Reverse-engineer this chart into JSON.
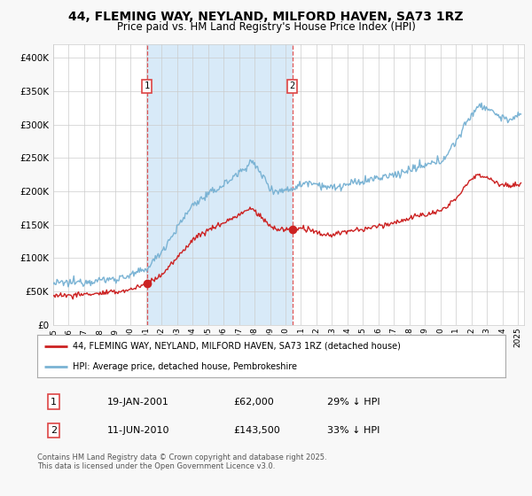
{
  "title1": "44, FLEMING WAY, NEYLAND, MILFORD HAVEN, SA73 1RZ",
  "title2": "Price paid vs. HM Land Registry's House Price Index (HPI)",
  "bg_color": "#f8f8f8",
  "plot_bg": "#ffffff",
  "ylim": [
    0,
    420000
  ],
  "yticks": [
    0,
    50000,
    100000,
    150000,
    200000,
    250000,
    300000,
    350000,
    400000
  ],
  "purchase1_date": 2001.05,
  "purchase1_price": 62000,
  "purchase2_date": 2010.44,
  "purchase2_price": 143500,
  "hpi_color": "#7ab3d4",
  "price_color": "#cc2222",
  "legend_label1": "44, FLEMING WAY, NEYLAND, MILFORD HAVEN, SA73 1RZ (detached house)",
  "legend_label2": "HPI: Average price, detached house, Pembrokeshire",
  "table_row1": [
    "1",
    "19-JAN-2001",
    "£62,000",
    "29% ↓ HPI"
  ],
  "table_row2": [
    "2",
    "11-JUN-2010",
    "£143,500",
    "33% ↓ HPI"
  ],
  "footer": "Contains HM Land Registry data © Crown copyright and database right 2025.\nThis data is licensed under the Open Government Licence v3.0.",
  "title_fontsize": 10,
  "subtitle_fontsize": 9,
  "shade_color": "#d8eaf8",
  "vline_color": "#dd4444",
  "label_box_color": "#dd4444"
}
